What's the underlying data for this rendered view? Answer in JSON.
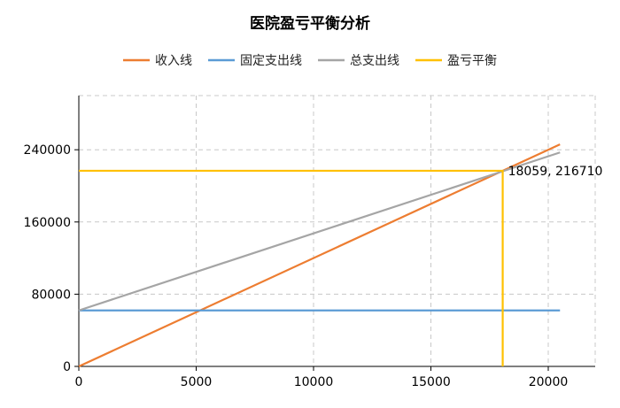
{
  "chart_data": {
    "type": "line",
    "title": "医院盈亏平衡分析",
    "xlabel": "",
    "ylabel": "",
    "xlim": [
      0,
      22000
    ],
    "ylim": [
      0,
      300000
    ],
    "xticks": [
      0,
      5000,
      10000,
      15000,
      20000
    ],
    "yticks": [
      0,
      80000,
      160000,
      240000
    ],
    "grid": true,
    "legend_position": "top-center",
    "series": [
      {
        "name": "收入线",
        "color": "#ED7D31",
        "x": [
          0,
          20500
        ],
        "y": [
          0,
          246000
        ]
      },
      {
        "name": "固定支出线",
        "color": "#5B9BD5",
        "x": [
          0,
          20500
        ],
        "y": [
          62000,
          62000
        ]
      },
      {
        "name": "总支出线",
        "color": "#A5A5A5",
        "x": [
          0,
          20500
        ],
        "y": [
          62000,
          237000
        ]
      },
      {
        "name": "盈亏平衡",
        "color": "#FFC000",
        "x": [
          0,
          18059,
          18059
        ],
        "y": [
          216710,
          216710,
          0
        ]
      }
    ],
    "annotations": [
      {
        "text": "18059, 216710",
        "x": 18059,
        "y": 216710
      }
    ]
  }
}
